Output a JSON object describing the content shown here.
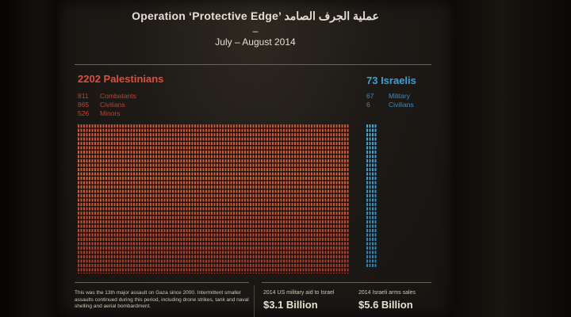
{
  "header": {
    "title": "Operation ‘Protective Edge’ عملية الجرف الصامد",
    "dash": "–",
    "dates": "July – August 2014"
  },
  "palestinians": {
    "title": "2202 Palestinians",
    "stats": [
      {
        "n": "811",
        "label": "Combatants"
      },
      {
        "n": "865",
        "label": "Civilians"
      },
      {
        "n": "526",
        "label": "Minors"
      }
    ],
    "color": "#d8513c"
  },
  "israelis": {
    "title": "73 Israelis",
    "stats": [
      {
        "n": "67",
        "label": "Military"
      },
      {
        "n": "6",
        "label": "Civilians"
      }
    ],
    "color": "#3f9fd2"
  },
  "footer": {
    "note": "This was the 13th major assault on Gaza since 2000. Intermittent smaller assaults continued during this period, including drone strikes, tank and naval shelling and aerial bombardment.",
    "aid_label": "2014 US military aid to Israel",
    "aid_value": "$3.1 Billion",
    "arms_label": "2014 Israeli arms sales",
    "arms_value": "$5.6 Billion"
  }
}
